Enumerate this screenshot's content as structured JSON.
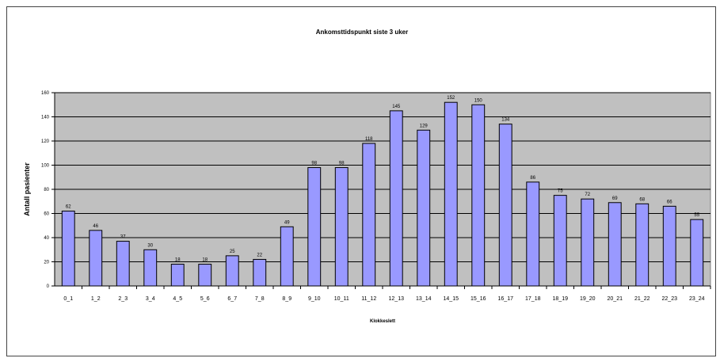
{
  "chart_data": {
    "type": "bar",
    "title": "Ankomsttidspunkt siste 3 uker",
    "xlabel": "Klokkeslett",
    "ylabel": "Antall pasienter",
    "ylim": [
      0,
      160
    ],
    "yticks": [
      0,
      20,
      40,
      60,
      80,
      100,
      120,
      140,
      160
    ],
    "grid": true,
    "categories": [
      "0_1",
      "1_2",
      "2_3",
      "3_4",
      "4_5",
      "5_6",
      "6_7",
      "7_8",
      "8_9",
      "9_10",
      "10_11",
      "11_12",
      "12_13",
      "13_14",
      "14_15",
      "15_16",
      "16_17",
      "17_18",
      "18_19",
      "19_20",
      "20_21",
      "21_22",
      "22_23",
      "23_24"
    ],
    "values": [
      62,
      46,
      37,
      30,
      18,
      18,
      25,
      22,
      49,
      98,
      98,
      118,
      145,
      129,
      152,
      150,
      134,
      86,
      75,
      72,
      69,
      68,
      66,
      55
    ],
    "colors": {
      "bar": "#9999ff",
      "bar_stroke": "#000000",
      "plot_bg": "#c0c0c0"
    }
  }
}
